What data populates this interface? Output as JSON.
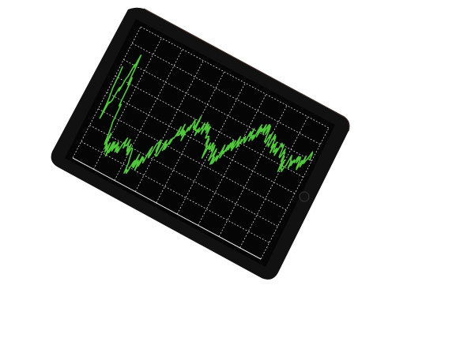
{
  "scene": {
    "subject": "tablet-with-stock-chart",
    "background_color": "#ffffff",
    "device_color": "#111111",
    "screen_color": "#050505",
    "grid_color": "#cfcfcf",
    "line_color": "#4fc83a",
    "icons": [
      "home-button-icon"
    ]
  },
  "chart_data": {
    "type": "line",
    "grid": true,
    "series": [
      {
        "values": [
          0.72,
          0.35,
          0.55,
          0.85,
          0.5,
          0.2,
          0.14,
          0.12,
          0.16,
          0.18,
          0.2,
          0.22,
          0.19,
          0.1,
          0.06,
          0.15,
          0.12,
          0.24,
          0.32,
          0.3,
          0.36,
          0.46,
          0.54,
          0.5,
          0.58,
          0.62,
          0.56,
          0.6,
          0.58,
          0.52,
          0.44,
          0.5,
          0.46,
          0.42,
          0.5,
          0.56,
          0.58,
          0.64,
          0.7,
          0.72,
          0.76,
          0.82,
          0.8,
          0.78,
          0.74,
          0.76,
          0.7,
          0.72,
          0.76,
          0.68,
          0.62,
          0.66,
          0.7,
          0.74,
          0.72,
          0.78,
          0.76
        ]
      }
    ]
  }
}
